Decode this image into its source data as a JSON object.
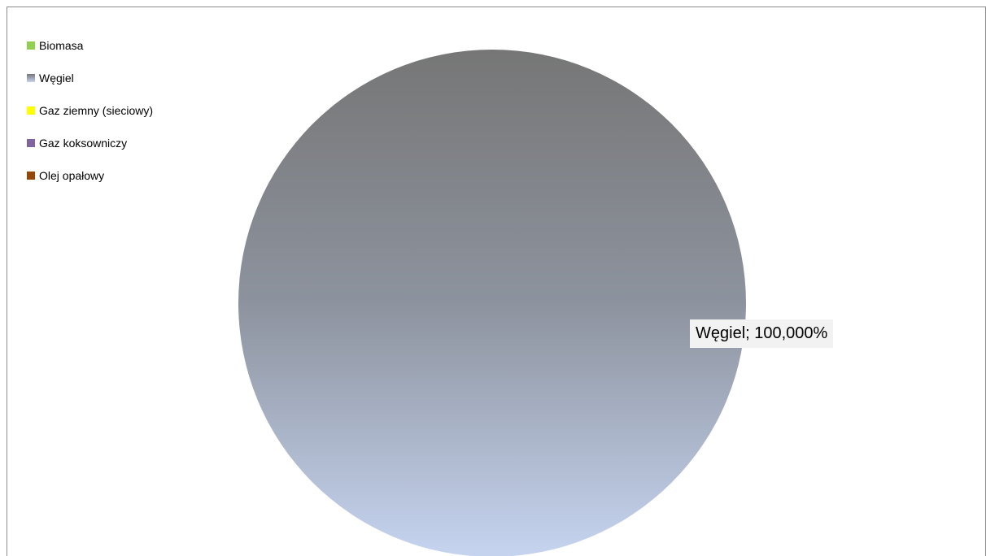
{
  "chart_data": {
    "type": "pie",
    "title": "",
    "categories": [
      "Biomasa",
      "Węgiel",
      "Gaz ziemny (sieciowy)",
      "Gaz koksowniczy",
      "Olej opałowy"
    ],
    "values": [
      0,
      100,
      0,
      0,
      0
    ],
    "colors": [
      "#92d050",
      "#7f8a96",
      "#ffff00",
      "#8064a2",
      "#974706"
    ],
    "legend_position": "top-left",
    "gradient": {
      "from": "#767676",
      "to": "#c6d4f0"
    },
    "data_labels": [
      {
        "category": "Węgiel",
        "text": "Węgiel; 100,000%"
      }
    ]
  }
}
